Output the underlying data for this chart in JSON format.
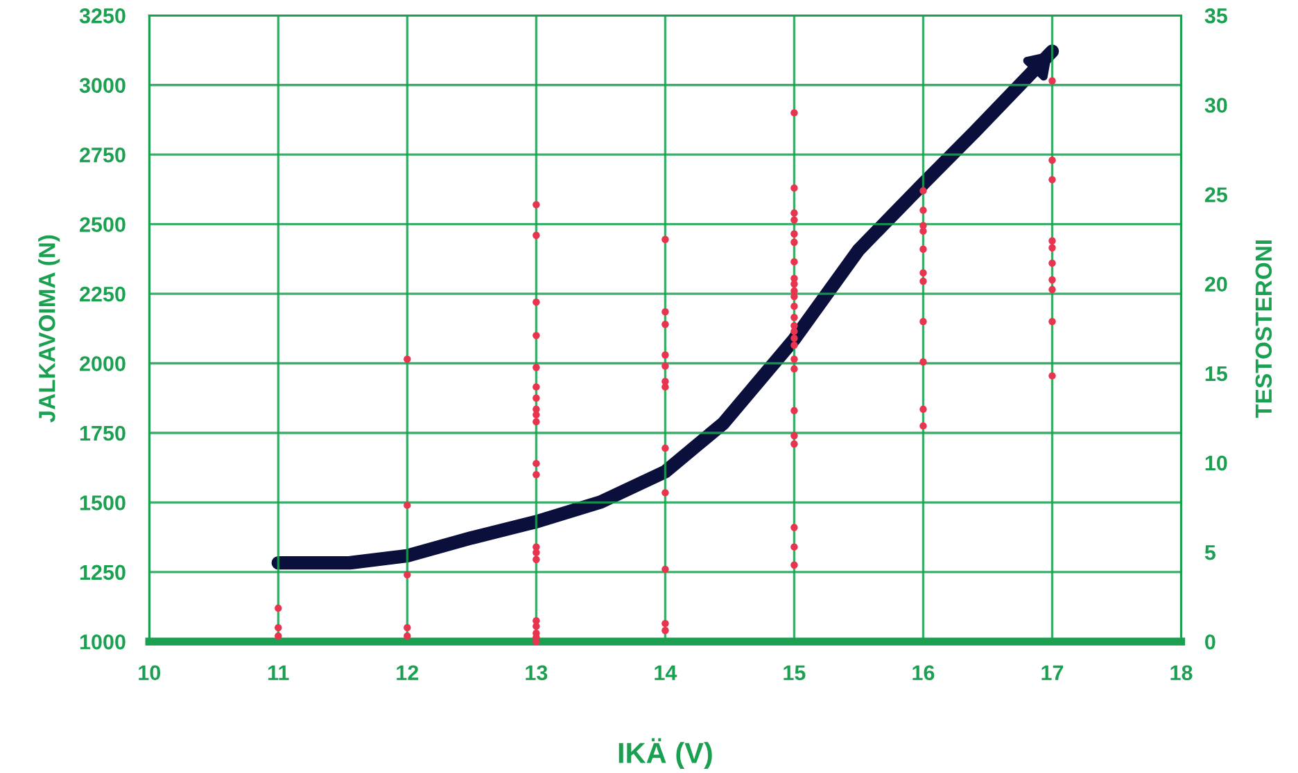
{
  "chart_data": {
    "type": "scatter",
    "xlabel": "IKÄ (V)",
    "ylabel": "JALKAVOIMA (N)",
    "y2label": "TESTOSTERONI",
    "xlim": [
      10,
      18
    ],
    "xticks": [
      10,
      11,
      12,
      13,
      14,
      15,
      16,
      17,
      18
    ],
    "ylim": [
      1000,
      3250
    ],
    "yticks": [
      1000,
      1250,
      1500,
      1750,
      2000,
      2250,
      2500,
      2750,
      3000,
      3250
    ],
    "y2lim": [
      0,
      35
    ],
    "y2ticks": [
      0,
      5,
      10,
      15,
      20,
      25,
      30,
      35
    ],
    "grid": true,
    "legend": false,
    "series": [
      {
        "color": "#e8344e",
        "marker": "circle",
        "x": [
          11,
          11,
          11,
          12,
          12,
          12,
          12,
          12,
          13,
          13,
          13,
          13,
          13,
          13,
          13,
          13,
          13,
          13,
          13,
          13,
          13,
          13,
          13,
          13,
          13,
          13,
          13,
          13,
          14,
          14,
          14,
          14,
          14,
          14,
          14,
          14,
          14,
          14,
          14,
          14,
          15,
          15,
          15,
          15,
          15,
          15,
          15,
          15,
          15,
          15,
          15,
          15,
          15,
          15,
          15,
          15,
          15,
          15,
          15,
          15,
          15,
          15,
          15,
          15,
          15,
          16,
          16,
          16,
          16,
          16,
          16,
          16,
          16,
          16,
          16,
          16,
          17,
          17,
          17,
          17,
          17,
          17,
          17,
          17,
          17,
          17
        ],
        "values": [
          1120,
          1050,
          1020,
          2015,
          1490,
          1240,
          1050,
          1020,
          2570,
          2460,
          2220,
          2100,
          1985,
          1915,
          1875,
          1835,
          1815,
          1790,
          1640,
          1600,
          1340,
          1320,
          1295,
          1075,
          1055,
          1030,
          1015,
          1000,
          2445,
          2185,
          2140,
          2030,
          1990,
          1935,
          1915,
          1695,
          1535,
          1260,
          1065,
          1040,
          2900,
          2630,
          2540,
          2515,
          2465,
          2435,
          2365,
          2305,
          2285,
          2260,
          2240,
          2205,
          2165,
          2135,
          2115,
          2090,
          2065,
          2015,
          1980,
          1830,
          1740,
          1710,
          1410,
          1340,
          1275,
          2620,
          2550,
          2495,
          2475,
          2410,
          2325,
          2295,
          2150,
          2005,
          1835,
          1775,
          3015,
          2730,
          2660,
          2440,
          2415,
          2360,
          2300,
          2265,
          2150,
          1955
        ]
      },
      {
        "type": "line",
        "axis": "y2",
        "color": "#0a0f3c",
        "marker": "none",
        "line_style": "solid",
        "x": [
          11,
          11.55,
          12,
          12.5,
          13,
          13.5,
          14,
          14.45,
          15,
          15.5,
          16,
          16.4,
          17
        ],
        "values": [
          4.4,
          4.4,
          4.8,
          5.8,
          6.7,
          7.8,
          9.5,
          12.2,
          16.9,
          21.9,
          25.6,
          28.5,
          33
        ]
      }
    ]
  }
}
